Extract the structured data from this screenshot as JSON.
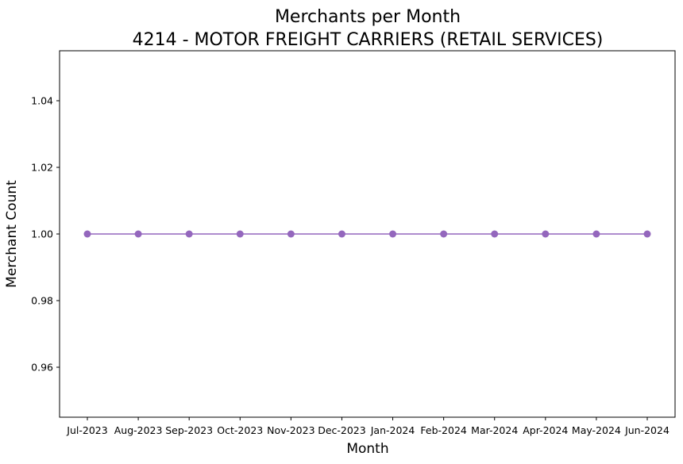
{
  "chart_data": {
    "type": "line",
    "title": "Merchants per Month",
    "subtitle": "4214 - MOTOR FREIGHT CARRIERS (RETAIL SERVICES)",
    "xlabel": "Month",
    "ylabel": "Merchant Count",
    "categories": [
      "Jul-2023",
      "Aug-2023",
      "Sep-2023",
      "Oct-2023",
      "Nov-2023",
      "Dec-2023",
      "Jan-2024",
      "Feb-2024",
      "Mar-2024",
      "Apr-2024",
      "May-2024",
      "Jun-2024"
    ],
    "series": [
      {
        "values": [
          1,
          1,
          1,
          1,
          1,
          1,
          1,
          1,
          1,
          1,
          1,
          1
        ],
        "color": "#9467bd",
        "marker": "circle"
      }
    ],
    "ylim": [
      0.945,
      1.055
    ],
    "yticks": [
      0.96,
      0.98,
      1.0,
      1.02,
      1.04
    ],
    "ytick_labels": [
      "0.96",
      "0.98",
      "1.00",
      "1.02",
      "1.04"
    ],
    "grid": false,
    "legend": "none"
  }
}
